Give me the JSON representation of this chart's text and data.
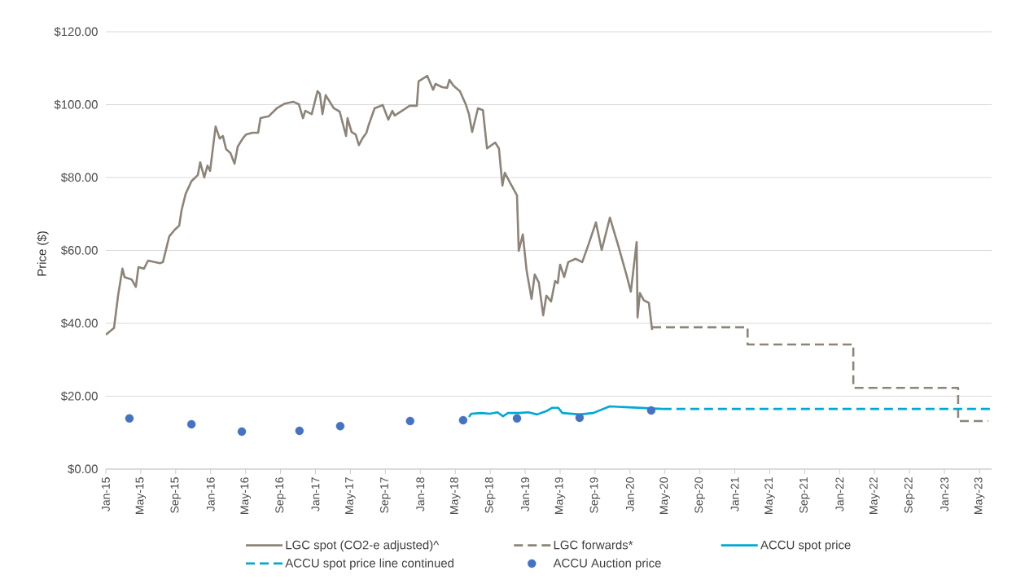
{
  "chart_data": {
    "type": "line",
    "ylabel": "Price ($)",
    "xlim": [
      "2015-01-01",
      "2023-06-13"
    ],
    "ylim": [
      0,
      120
    ],
    "yticks": [
      {
        "value": 0,
        "label": "$0.00"
      },
      {
        "value": 20,
        "label": "$20.00"
      },
      {
        "value": 40,
        "label": "$40.00"
      },
      {
        "value": 60,
        "label": "$60.00"
      },
      {
        "value": 80,
        "label": "$80.00"
      },
      {
        "value": 100,
        "label": "$100.00"
      },
      {
        "value": 120,
        "label": "$120.00"
      }
    ],
    "xticks": [
      {
        "value": "2015-01",
        "label": "Jan-15"
      },
      {
        "value": "2015-05",
        "label": "May-15"
      },
      {
        "value": "2015-09",
        "label": "Sep-15"
      },
      {
        "value": "2016-01",
        "label": "Jan-16"
      },
      {
        "value": "2016-05",
        "label": "May-16"
      },
      {
        "value": "2016-09",
        "label": "Sep-16"
      },
      {
        "value": "2017-01",
        "label": "Jan-17"
      },
      {
        "value": "2017-05",
        "label": "May-17"
      },
      {
        "value": "2017-09",
        "label": "Sep-17"
      },
      {
        "value": "2018-01",
        "label": "Jan-18"
      },
      {
        "value": "2018-05",
        "label": "May-18"
      },
      {
        "value": "2018-09",
        "label": "Sep-18"
      },
      {
        "value": "2019-01",
        "label": "Jan-19"
      },
      {
        "value": "2019-05",
        "label": "May-19"
      },
      {
        "value": "2019-09",
        "label": "Sep-19"
      },
      {
        "value": "2020-01",
        "label": "Jan-20"
      },
      {
        "value": "2020-05",
        "label": "May-20"
      },
      {
        "value": "2020-09",
        "label": "Sep-20"
      },
      {
        "value": "2021-01",
        "label": "Jan-21"
      },
      {
        "value": "2021-05",
        "label": "May-21"
      },
      {
        "value": "2021-09",
        "label": "Sep-21"
      },
      {
        "value": "2022-01",
        "label": "Jan-22"
      },
      {
        "value": "2022-05",
        "label": "May-22"
      },
      {
        "value": "2022-09",
        "label": "Sep-22"
      },
      {
        "value": "2023-01",
        "label": "Jan-23"
      },
      {
        "value": "2023-05",
        "label": "May-23"
      }
    ],
    "grid": "y",
    "legend": "bottom",
    "series": [
      {
        "name": "LGC spot (CO2-e adjusted)^",
        "color": "#8c8479",
        "line_style": "solid",
        "x": [
          "2015-01-01",
          "2015-01-29",
          "2015-02-13",
          "2015-02-28",
          "2015-03-05",
          "2015-03-30",
          "2015-04-14",
          "2015-04-23",
          "2015-05-12",
          "2015-05-26",
          "2015-07-08",
          "2015-07-17",
          "2015-08-09",
          "2015-08-28",
          "2015-09-13",
          "2015-09-21",
          "2015-10-05",
          "2015-10-25",
          "2015-11-17",
          "2015-11-25",
          "2015-12-09",
          "2015-12-20",
          "2015-12-29",
          "2016-01-18",
          "2016-02-02",
          "2016-02-13",
          "2016-02-24",
          "2016-03-09",
          "2016-03-23",
          "2016-04-04",
          "2016-04-21",
          "2016-05-02",
          "2016-05-24",
          "2016-06-14",
          "2016-06-22",
          "2016-07-20",
          "2016-08-18",
          "2016-09-16",
          "2016-10-14",
          "2016-11-04",
          "2016-11-18",
          "2016-11-26",
          "2016-12-18",
          "2017-01-08",
          "2017-01-16",
          "2017-01-25",
          "2017-02-06",
          "2017-03-04",
          "2017-03-24",
          "2017-04-16",
          "2017-04-21",
          "2017-05-05",
          "2017-05-19",
          "2017-05-30",
          "2017-06-12",
          "2017-06-26",
          "2017-07-04",
          "2017-07-24",
          "2017-08-22",
          "2017-09-11",
          "2017-09-25",
          "2017-10-03",
          "2017-11-02",
          "2017-11-24",
          "2017-12-19",
          "2017-12-25",
          "2018-01-25",
          "2018-02-15",
          "2018-02-23",
          "2018-03-16",
          "2018-04-03",
          "2018-04-11",
          "2018-04-25",
          "2018-05-17",
          "2018-06-07",
          "2018-06-18",
          "2018-06-29",
          "2018-07-19",
          "2018-08-06",
          "2018-08-20",
          "2018-09-18",
          "2018-10-01",
          "2018-10-13",
          "2018-10-21",
          "2018-11-13",
          "2018-12-03",
          "2018-12-09",
          "2018-12-23",
          "2019-01-06",
          "2019-01-23",
          "2019-02-04",
          "2019-02-18",
          "2019-03-03",
          "2019-03-14",
          "2019-03-30",
          "2019-04-14",
          "2019-04-23",
          "2019-05-01",
          "2019-05-15",
          "2019-05-29",
          "2019-06-24",
          "2019-07-17",
          "2019-08-09",
          "2019-09-04",
          "2019-09-24",
          "2019-10-22",
          "2019-11-22",
          "2019-12-21",
          "2020-01-04",
          "2020-01-24",
          "2020-01-27",
          "2020-02-05",
          "2020-02-19",
          "2020-03-06",
          "2020-03-17"
        ],
        "values": [
          36.9,
          38.7,
          47.6,
          55,
          52.7,
          52,
          50,
          55.4,
          55,
          57.2,
          56.5,
          56.8,
          63.9,
          65.7,
          66.8,
          71,
          75.5,
          79,
          80.7,
          84.2,
          80,
          83.3,
          81.8,
          94,
          90.7,
          91.4,
          87.8,
          86.7,
          83.8,
          88.5,
          90.7,
          91.8,
          92.3,
          92.3,
          96.3,
          96.8,
          99,
          100.3,
          100.8,
          100.1,
          96.3,
          98.3,
          97.4,
          103.7,
          103,
          97.4,
          102.6,
          99,
          98.1,
          91.4,
          96.3,
          92.5,
          91.8,
          88.9,
          90.7,
          92.3,
          94.5,
          99,
          99.9,
          95.9,
          98.3,
          97,
          98.5,
          99.7,
          99.7,
          106.4,
          107.9,
          104.1,
          105.7,
          104.8,
          104.6,
          106.8,
          105.2,
          103.7,
          100.1,
          97.4,
          92.5,
          99,
          98.5,
          88,
          89.6,
          88,
          77.8,
          81.3,
          78,
          75.1,
          59.9,
          64.4,
          54.5,
          46.7,
          53.4,
          51.2,
          42.2,
          47.6,
          46,
          51.6,
          51,
          56.1,
          52.7,
          56.8,
          57.7,
          56.8,
          61.7,
          67.7,
          60.1,
          69,
          61,
          52.7,
          48.7,
          62.3,
          41.6,
          48.3,
          46.3,
          45.6,
          38.2
        ]
      },
      {
        "name": "LGC forwards*",
        "type": "step",
        "color": "#8c8479",
        "line_style": "dashed",
        "x": [
          "2020-03-17",
          "2021-02-15",
          "2022-02-18",
          "2023-02-18",
          "2023-06-01"
        ],
        "values": [
          38.9,
          34.2,
          22.3,
          13.2,
          13.2
        ]
      },
      {
        "name": "ACCU spot price",
        "color": "#00a9d4",
        "line_style": "solid",
        "x": [
          "2018-06-18",
          "2018-06-26",
          "2018-07-30",
          "2018-08-30",
          "2018-09-26",
          "2018-10-15",
          "2018-11-02",
          "2018-12-11",
          "2019-01-12",
          "2019-02-12",
          "2019-03-14",
          "2019-04-03",
          "2019-04-25",
          "2019-05-09",
          "2019-07-08",
          "2019-08-25",
          "2019-10-21",
          "2020-04-23"
        ],
        "values": [
          14.3,
          15.2,
          15.4,
          15.2,
          15.6,
          14.5,
          15.4,
          15.4,
          15.6,
          15,
          15.9,
          16.8,
          16.8,
          15.4,
          15,
          15.4,
          17.2,
          16.5
        ]
      },
      {
        "name": "ACCU spot price line continued",
        "type": "line",
        "color": "#00a9d4",
        "line_style": "dashed",
        "x": [
          "2020-04-23",
          "2023-06-13"
        ],
        "values": [
          16.5,
          16.5
        ]
      },
      {
        "name": "ACCU Auction price",
        "type": "scatter",
        "color": "#4472c4",
        "marker": "circle",
        "x": [
          "2015-03-22",
          "2015-10-25",
          "2016-04-18",
          "2016-11-06",
          "2017-03-26",
          "2017-11-26",
          "2018-05-28",
          "2018-12-03",
          "2019-07-08",
          "2020-03-14"
        ],
        "values": [
          13.9,
          12.3,
          10.3,
          10.5,
          11.8,
          13.2,
          13.4,
          13.9,
          14.1,
          16.1
        ]
      }
    ]
  }
}
